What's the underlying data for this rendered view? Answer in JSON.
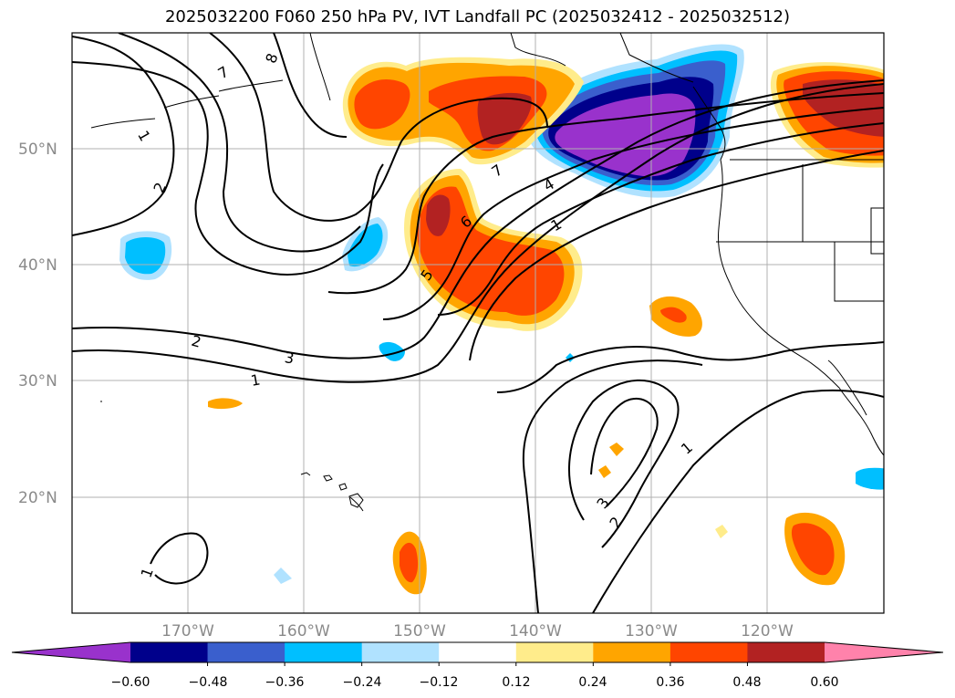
{
  "title": "2025032200 F060 250 hPa PV, IVT Landfall PC (2025032412 - 2025032512)",
  "lat_labels": [
    "50°N",
    "40°N",
    "30°N",
    "20°N"
  ],
  "lon_labels": [
    "170°W",
    "160°W",
    "150°W",
    "140°W",
    "130°W",
    "120°W"
  ],
  "colorbar": {
    "tick_labels": [
      "−0.60",
      "−0.48",
      "−0.36",
      "−0.24",
      "−0.12",
      "0.12",
      "0.24",
      "0.36",
      "0.48",
      "0.60"
    ],
    "colors": [
      "#9932cc",
      "#00008b",
      "#3a5fcd",
      "#00bfff",
      "#b0e2ff",
      "#ffffff",
      "#ffec8b",
      "#ffa500",
      "#ff4500",
      "#b22222",
      "#ff82ab"
    ]
  },
  "contour_labels": [
    "7",
    "8",
    "1",
    "2",
    "7",
    "4",
    "6",
    "1",
    "5",
    "2",
    "3",
    "1",
    "1",
    "3",
    "2",
    "1"
  ],
  "map": {
    "projection": "plate-carree",
    "lon_range": [
      -180,
      -110
    ],
    "lat_range": [
      10,
      60
    ],
    "field": "250 hPa PV contours, IVT landfall PC shading"
  }
}
